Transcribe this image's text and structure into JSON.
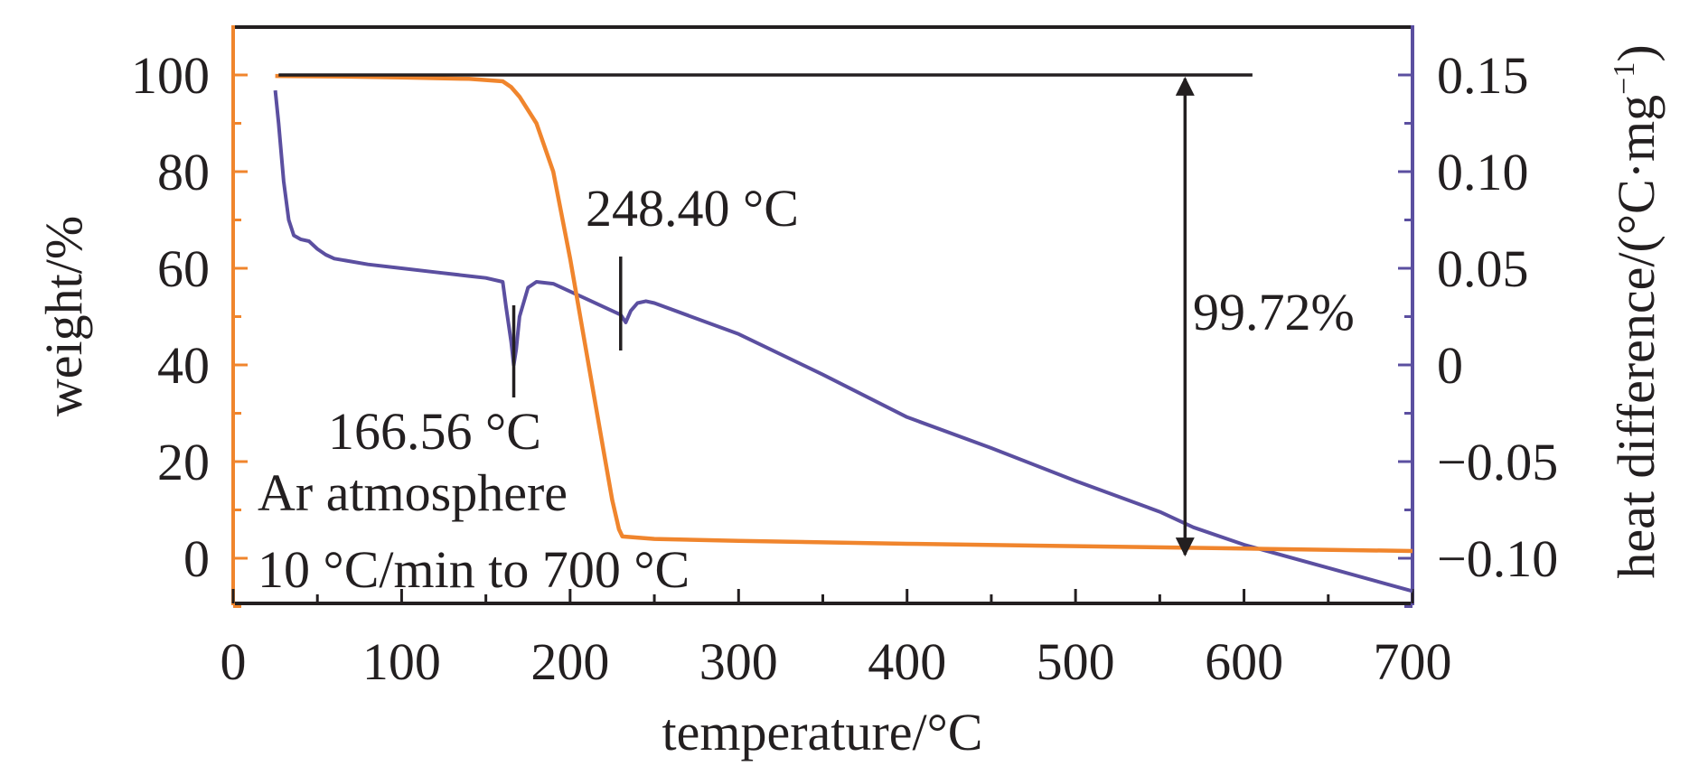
{
  "chart_data": {
    "type": "line",
    "xlabel": "temperature/°C",
    "ylabel_left": "weight/%",
    "ylabel_right_main": "heat difference/(°C·mg",
    "ylabel_right_sup": "−1",
    "ylabel_right_close": ")",
    "xlim": [
      0,
      700
    ],
    "ylim_left": [
      -10,
      110
    ],
    "ylim_right": [
      -0.125,
      0.175
    ],
    "x_ticks": [
      0,
      100,
      200,
      300,
      400,
      500,
      600,
      700
    ],
    "x_tick_labels": [
      "0",
      "100",
      "200",
      "300",
      "400",
      "500",
      "600",
      "700"
    ],
    "y_left_ticks": [
      0,
      20,
      40,
      60,
      80,
      100
    ],
    "y_left_tick_labels": [
      "0",
      "20",
      "40",
      "60",
      "80",
      "100"
    ],
    "y_right_ticks": [
      -0.1,
      -0.05,
      0,
      0.05,
      0.1,
      0.15
    ],
    "y_right_tick_labels": [
      "−0.10",
      "−0.05",
      "0",
      "0.05",
      "0.10",
      "0.15"
    ],
    "colors": {
      "weight": "#f0852d",
      "heat": "#5b4fa0",
      "axis_left": "#f0852d",
      "axis_right": "#5b4fa0",
      "annotation": "#231f20"
    },
    "series": [
      {
        "axis": "left",
        "x": [
          25,
          60,
          100,
          140,
          160,
          165,
          170,
          180,
          190,
          200,
          210,
          220,
          225,
          229,
          231,
          250,
          300,
          400,
          500,
          600,
          700
        ],
        "y": [
          99.8,
          99.7,
          99.5,
          99.2,
          98.7,
          97.5,
          95.5,
          90,
          80,
          62,
          42,
          22,
          12,
          6,
          4.5,
          4,
          3.6,
          3,
          2.5,
          2,
          1.5
        ]
      },
      {
        "axis": "right",
        "x": [
          25,
          27,
          30,
          33,
          36,
          40,
          45,
          50,
          55,
          60,
          80,
          100,
          120,
          140,
          150,
          160,
          162,
          165,
          166.56,
          168,
          170,
          175,
          180,
          190,
          200,
          210,
          220,
          230,
          233,
          236,
          240,
          245,
          250,
          300,
          350,
          400,
          450,
          500,
          550,
          570,
          600,
          650,
          700
        ],
        "y": [
          0.142,
          0.125,
          0.095,
          0.075,
          0.067,
          0.065,
          0.064,
          0.06,
          0.057,
          0.055,
          0.052,
          0.05,
          0.048,
          0.046,
          0.045,
          0.043,
          0.03,
          0.012,
          0.0,
          0.008,
          0.025,
          0.04,
          0.043,
          0.042,
          0.038,
          0.034,
          0.03,
          0.026,
          0.022,
          0.028,
          0.032,
          0.033,
          0.032,
          0.016,
          -0.005,
          -0.027,
          -0.043,
          -0.06,
          -0.076,
          -0.084,
          -0.093,
          -0.105,
          -0.117
        ]
      }
    ],
    "annotations": {
      "peak1_label": "166.56 °C",
      "peak1_x": 166.56,
      "peak2_label": "248.40 °C",
      "peak2_x": 230,
      "mass_loss_label": "99.72%",
      "mass_loss_x": 565,
      "reference_line_y": 100,
      "atmosphere": "Ar atmosphere",
      "rate": "10 °C/min to 700 °C"
    }
  }
}
